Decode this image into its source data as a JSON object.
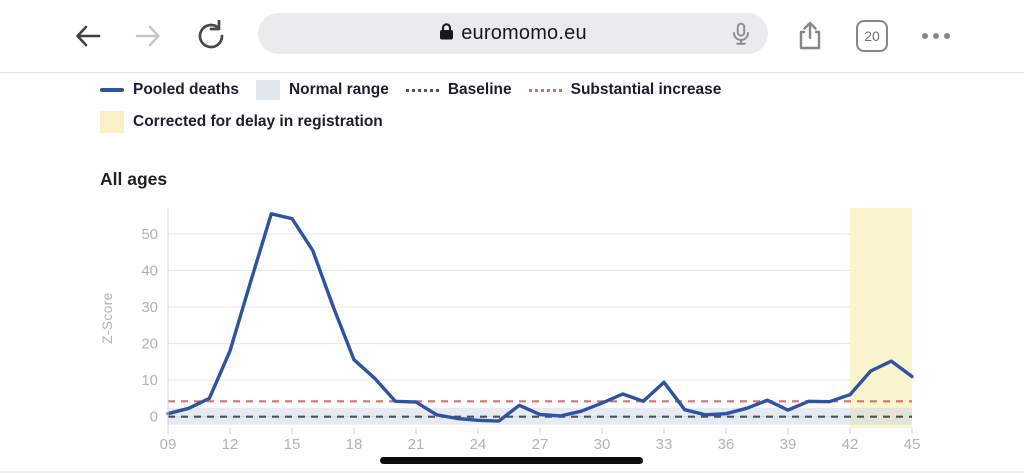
{
  "browser": {
    "url": "euromomo.eu",
    "tab_count": "20"
  },
  "legend": {
    "items": [
      {
        "label": "Pooled deaths",
        "type": "line",
        "color": "#2e52a4"
      },
      {
        "label": "Normal range",
        "type": "box",
        "color": "#e2e7ef"
      },
      {
        "label": "Baseline",
        "type": "dots",
        "color": "#55555f"
      },
      {
        "label": "Substantial increase",
        "type": "dots",
        "color": "#d96a6a"
      },
      {
        "label": "Corrected for delay in registration",
        "type": "box",
        "color": "#faf2c6"
      }
    ]
  },
  "section_title": "All ages",
  "chart_data": {
    "type": "line",
    "title": "All ages",
    "series_name": "Pooled deaths",
    "ylabel": "Z-Score",
    "x": [
      9,
      10,
      11,
      12,
      13,
      14,
      15,
      16,
      17,
      18,
      19,
      20,
      21,
      22,
      23,
      24,
      25,
      26,
      27,
      28,
      29,
      30,
      31,
      32,
      33,
      34,
      35,
      36,
      37,
      38,
      39,
      40,
      41,
      42,
      43,
      44,
      45
    ],
    "values": [
      0.8,
      2.3,
      5.0,
      18.0,
      37.0,
      55.5,
      54.2,
      45.5,
      30.0,
      15.6,
      10.5,
      4.2,
      4.0,
      0.5,
      -0.5,
      -1.0,
      -1.2,
      3.1,
      0.6,
      0.2,
      1.5,
      3.7,
      6.2,
      4.2,
      9.4,
      1.9,
      0.5,
      0.8,
      2.3,
      4.5,
      1.8,
      4.2,
      4.1,
      6.0,
      12.5,
      15.2,
      11.0
    ],
    "xtick_labels": [
      "09",
      "12",
      "15",
      "18",
      "21",
      "24",
      "27",
      "30",
      "33",
      "36",
      "39",
      "42",
      "45"
    ],
    "xtick_weeks": [
      9,
      12,
      15,
      18,
      21,
      24,
      27,
      30,
      33,
      36,
      39,
      42,
      45
    ],
    "yticks": [
      0,
      10,
      20,
      30,
      40,
      50
    ],
    "ylim": [
      -3.1,
      57.1
    ],
    "xlim": [
      9,
      45
    ],
    "baseline": 0,
    "substantial_increase": 4.2,
    "normal_range": [
      -2.2,
      2.4
    ],
    "corrected_region": [
      42,
      45
    ],
    "grid": true,
    "colors": {
      "line": "#2e52a4",
      "baseline": "#4e4e58",
      "substantial_increase": "#dc6e6e",
      "normal_range_fill": "#e2e7ef",
      "corrected_fill": "#faf4cf",
      "gridline": "#e6e6e9",
      "axis_text": "#b2b2b7"
    }
  }
}
